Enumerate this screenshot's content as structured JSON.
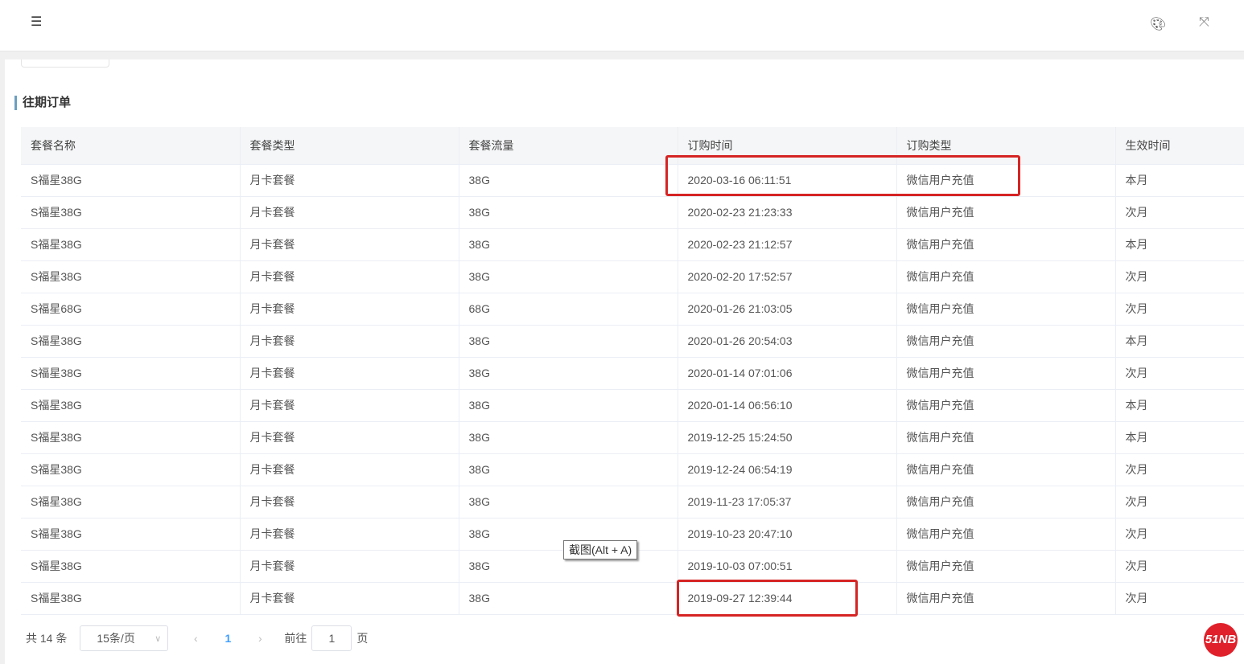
{
  "header": {
    "menu_icon": "menu-fold-icon",
    "palette_icon": "palette-icon",
    "fullscreen_icon": "fullscreen-icon"
  },
  "section_title": "往期订单",
  "table": {
    "columns": [
      "套餐名称",
      "套餐类型",
      "套餐流量",
      "订购时间",
      "订购类型",
      "生效时间"
    ],
    "rows": [
      [
        "S福星38G",
        "月卡套餐",
        "38G",
        "2020-03-16 06:11:51",
        "微信用户充值",
        "本月"
      ],
      [
        "S福星38G",
        "月卡套餐",
        "38G",
        "2020-02-23 21:23:33",
        "微信用户充值",
        "次月"
      ],
      [
        "S福星38G",
        "月卡套餐",
        "38G",
        "2020-02-23 21:12:57",
        "微信用户充值",
        "本月"
      ],
      [
        "S福星38G",
        "月卡套餐",
        "38G",
        "2020-02-20 17:52:57",
        "微信用户充值",
        "次月"
      ],
      [
        "S福星68G",
        "月卡套餐",
        "68G",
        "2020-01-26 21:03:05",
        "微信用户充值",
        "次月"
      ],
      [
        "S福星38G",
        "月卡套餐",
        "38G",
        "2020-01-26 20:54:03",
        "微信用户充值",
        "本月"
      ],
      [
        "S福星38G",
        "月卡套餐",
        "38G",
        "2020-01-14 07:01:06",
        "微信用户充值",
        "次月"
      ],
      [
        "S福星38G",
        "月卡套餐",
        "38G",
        "2020-01-14 06:56:10",
        "微信用户充值",
        "本月"
      ],
      [
        "S福星38G",
        "月卡套餐",
        "38G",
        "2019-12-25 15:24:50",
        "微信用户充值",
        "本月"
      ],
      [
        "S福星38G",
        "月卡套餐",
        "38G",
        "2019-12-24 06:54:19",
        "微信用户充值",
        "次月"
      ],
      [
        "S福星38G",
        "月卡套餐",
        "38G",
        "2019-11-23 17:05:37",
        "微信用户充值",
        "次月"
      ],
      [
        "S福星38G",
        "月卡套餐",
        "38G",
        "2019-10-23 20:47:10",
        "微信用户充值",
        "次月"
      ],
      [
        "S福星38G",
        "月卡套餐",
        "38G",
        "2019-10-03 07:00:51",
        "微信用户充值",
        "次月"
      ],
      [
        "S福星38G",
        "月卡套餐",
        "38G",
        "2019-09-27 12:39:44",
        "微信用户充值",
        "次月"
      ]
    ]
  },
  "tooltip": "截图(Alt + A)",
  "pagination": {
    "total": "共 14 条",
    "page_size": "15条/页",
    "prev": "‹",
    "current": "1",
    "next": "›",
    "goto_label": "前往",
    "goto_value": "1",
    "page_suffix": "页"
  },
  "watermark": "51NB",
  "colors": {
    "highlight": "#d62424",
    "accent": "#409eff",
    "title_bar": "#6a9fc0"
  }
}
